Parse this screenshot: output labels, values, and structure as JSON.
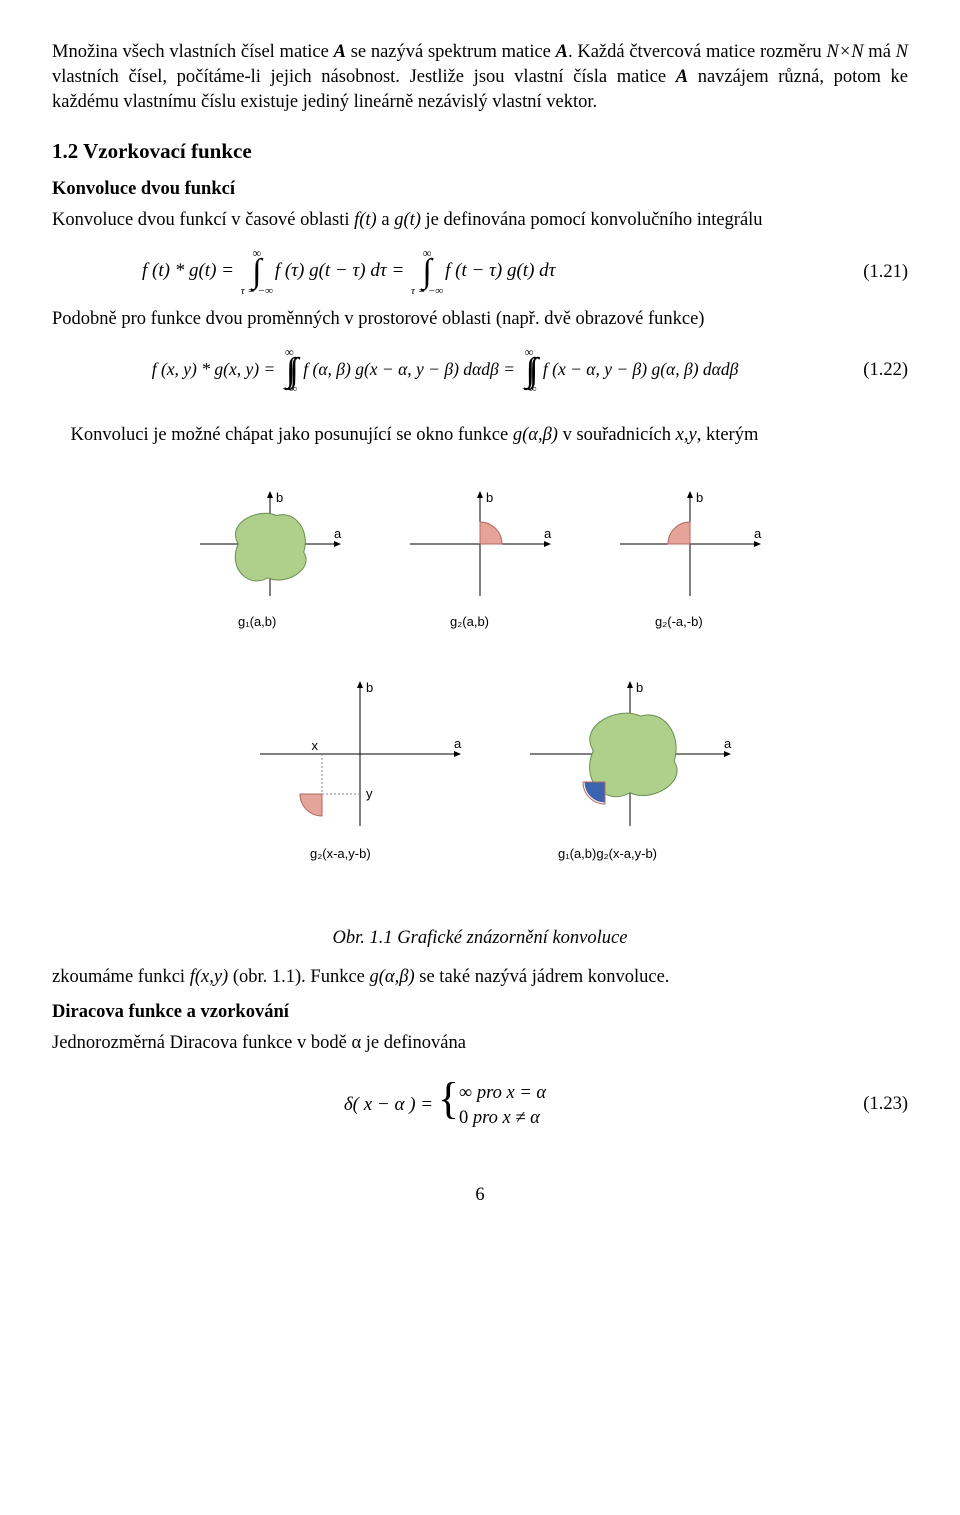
{
  "para1_a": "Množina všech vlastních čísel matice ",
  "para1_b": " se nazývá spektrum matice ",
  "para1_c": ". Každá čtvercová matice rozměru ",
  "para1_d": " má ",
  "para1_e": "  vlastních čísel, počítáme-li jejich násobnost. Jestliže jsou vlastní čísla matice ",
  "para1_f": " navzájem  různá, potom ke každému vlastnímu číslu existuje jediný lineárně  nezávislý vlastní vektor.",
  "sym_A": "A",
  "sym_NxN": "N×N",
  "sym_N": "N",
  "section_title": "1.2 Vzorkovací funkce",
  "subh1": "Konvoluce dvou funkcí",
  "para2_a": "Konvoluce dvou funkcí v časové oblasti ",
  "para2_ft": "f(t)",
  "para2_mid": " a ",
  "para2_gt": "g(t)",
  "para2_b": " je definována pomocí konvolučního integrálu",
  "eq21_lhs": "f (t) * g(t)  = ",
  "eq21_int1": "f (τ) g(t − τ) dτ",
  "eq21_eq": "  =  ",
  "eq21_int2": "f (t − τ) g(t) dτ",
  "eq21_num": "(1.21)",
  "int_top": "∞",
  "int_bot_tau": "τ = −∞",
  "int_bot_inf": "−∞",
  "para3": "Podobně pro funkce dvou proměnných v prostorové oblasti (např. dvě obrazové funkce)",
  "eq22_lhs": "f (x, y) * g(x, y) = ",
  "eq22_int1": "f (α, β) g(x − α, y − β) dαdβ",
  "eq22_eq": "  =  ",
  "eq22_int2": "f (x − α, y − β) g(α, β) dαdβ",
  "eq22_num": "(1.22)",
  "para4_a": "Konvoluci je možné chápat jako posunující se okno funkce ",
  "para4_g": "g(α,β)",
  "para4_b": " v souřadnicích ",
  "para4_xy": "x,y",
  "para4_c": ", kterým",
  "caption": "Obr. 1.1 Grafické znázornění konvoluce",
  "para5_a": "zkoumáme funkci ",
  "para5_fxy": "f(x,y)",
  "para5_b": " (obr. 1.1). Funkce ",
  "para5_g": "g(α,β)",
  "para5_c": "  se také nazývá jádrem konvoluce.",
  "subh2": "Diracova funkce a vzorkování",
  "para6": "Jednorozměrná Diracova funkce v bodě α je definována",
  "eq23_lhs": "δ( x − α )  = ",
  "eq23_r1a": "∞",
  "eq23_r1b": "    pro x = α",
  "eq23_r2a": "0",
  "eq23_r2b": "    pro x ≠ α",
  "eq23_num": "(1.23)",
  "page_number": "6",
  "fig": {
    "blob_fill": "#aed08b",
    "blob_stroke": "#6a8e54",
    "wedge_fill": "#e4a499",
    "wedge_stroke": "#b36a5e",
    "blue_fill": "#3c63b0",
    "axis_color": "#000000",
    "axis_width": 1,
    "label_color": "#000000",
    "label_font": "Arial, Helvetica, sans-serif",
    "label_size": 13,
    "dash_color": "#888888",
    "labels": {
      "a": "a",
      "b": "b",
      "x": "x",
      "y": "y",
      "g1ab": "g₁(a,b)",
      "g2ab": "g₂(a,b)",
      "g2nab": "g₂(-a,-b)",
      "g2xy": "g₂(x-a,y-b)",
      "g1g2": "g₁(a,b)g₂(x-a,y-b)"
    }
  }
}
